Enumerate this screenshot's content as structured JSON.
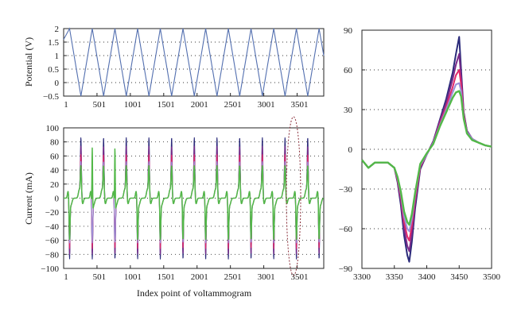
{
  "chart_data": [
    {
      "type": "line",
      "ylabel": "Potential (V)",
      "xlim": [
        1,
        3900
      ],
      "ylim": [
        -0.5,
        2
      ],
      "x_ticks": [
        "1",
        "501",
        "1001",
        "1501",
        "2001",
        "2501",
        "3001",
        "3501"
      ],
      "y_ticks": [
        "2",
        "1.5",
        "1",
        "0.5",
        "0",
        "−0.5"
      ],
      "grid": "horizontal-dotted",
      "series": [
        {
          "color": "#5470b0",
          "x": [
            1,
            90,
            260,
            430,
            600,
            770,
            940,
            1110,
            1280,
            1450,
            1620,
            1790,
            1960,
            2130,
            2300,
            2470,
            2640,
            2810,
            2980,
            3150,
            3320,
            3490,
            3660,
            3830,
            3900
          ],
          "y": [
            1.6,
            2.0,
            -0.5,
            2.0,
            -0.5,
            2.0,
            -0.5,
            2.0,
            -0.5,
            2.0,
            -0.5,
            2.0,
            -0.5,
            2.0,
            -0.5,
            2.0,
            -0.5,
            2.0,
            -0.5,
            2.0,
            -0.5,
            2.0,
            -0.5,
            2.0,
            1.0
          ]
        }
      ]
    },
    {
      "type": "line",
      "xlabel": "Index point of voltammogram",
      "ylabel": "Current (mA)",
      "xlim": [
        1,
        3900
      ],
      "ylim": [
        -100,
        100
      ],
      "x_ticks": [
        "1",
        "501",
        "1001",
        "1501",
        "2001",
        "2501",
        "3001",
        "3501"
      ],
      "y_ticks": [
        "100",
        "80",
        "60",
        "40",
        "20",
        "0",
        "−20",
        "−40",
        "−60",
        "−80",
        "−100"
      ],
      "grid": "horizontal-dotted",
      "cycles": {
        "anodic_peak_x": [
          260,
          600,
          940,
          1280,
          1620,
          1960,
          2300,
          2640,
          2980,
          3320,
          3660
        ],
        "cathodic_peak_x": [
          90,
          430,
          770,
          1110,
          1450,
          1790,
          2130,
          2470,
          2810,
          3150,
          3490,
          3830
        ],
        "green_spike_x": [
          430,
          770
        ]
      },
      "series": [
        {
          "color": "#2a2a7a",
          "peak": 84,
          "trough": -83
        },
        {
          "color": "#7a2a8a",
          "peak": 72,
          "trough": -76
        },
        {
          "color": "#e0286a",
          "peak": 60,
          "trough": -68
        },
        {
          "color": "#9a8ed8",
          "peak": 50,
          "trough": -60
        },
        {
          "color": "#52b848",
          "peak": 44,
          "trough": -55
        }
      ]
    },
    {
      "type": "line",
      "xlim": [
        3300,
        3500
      ],
      "ylim": [
        -90,
        90
      ],
      "x_ticks": [
        "3300",
        "3350",
        "3400",
        "3450",
        "3500"
      ],
      "y_ticks": [
        "90",
        "60",
        "30",
        "0",
        "−30",
        "−60",
        "−90"
      ],
      "grid": "horizontal-dotted",
      "x": [
        3300,
        3310,
        3320,
        3330,
        3340,
        3350,
        3355,
        3360,
        3365,
        3370,
        3373,
        3377,
        3382,
        3390,
        3400,
        3410,
        3420,
        3430,
        3440,
        3445,
        3450,
        3453,
        3457,
        3462,
        3470,
        3480,
        3490,
        3500
      ],
      "series": [
        {
          "color": "#2a2a7a",
          "y": [
            -8,
            -14,
            -10,
            -10,
            -10,
            -14,
            -25,
            -42,
            -65,
            -80,
            -85,
            -70,
            -45,
            -15,
            -4,
            6,
            22,
            38,
            58,
            72,
            85,
            60,
            28,
            14,
            8,
            5,
            3,
            2
          ]
        },
        {
          "color": "#7a2a8a",
          "y": [
            -8,
            -14,
            -10,
            -10,
            -10,
            -14,
            -24,
            -39,
            -60,
            -73,
            -77,
            -64,
            -41,
            -14,
            -4,
            6,
            21,
            35,
            53,
            64,
            72,
            55,
            27,
            14,
            8,
            5,
            3,
            2
          ]
        },
        {
          "color": "#e0286a",
          "y": [
            -8,
            -14,
            -10,
            -10,
            -10,
            -14,
            -23,
            -36,
            -55,
            -66,
            -69,
            -58,
            -38,
            -13,
            -4,
            5,
            19,
            32,
            47,
            56,
            60,
            49,
            26,
            13,
            8,
            5,
            3,
            2
          ]
        },
        {
          "color": "#9a8ed8",
          "y": [
            -8,
            -14,
            -10,
            -10,
            -10,
            -14,
            -22,
            -34,
            -51,
            -60,
            -62,
            -53,
            -35,
            -12,
            -4,
            5,
            18,
            30,
            43,
            49,
            50,
            44,
            24,
            13,
            8,
            5,
            3,
            2
          ]
        },
        {
          "color": "#52b848",
          "y": [
            -8,
            -14,
            -10,
            -10,
            -10,
            -14,
            -21,
            -32,
            -47,
            -55,
            -57,
            -49,
            -33,
            -11,
            -3,
            4,
            17,
            28,
            39,
            43,
            44,
            40,
            23,
            12,
            7,
            5,
            3,
            2
          ]
        }
      ]
    }
  ]
}
